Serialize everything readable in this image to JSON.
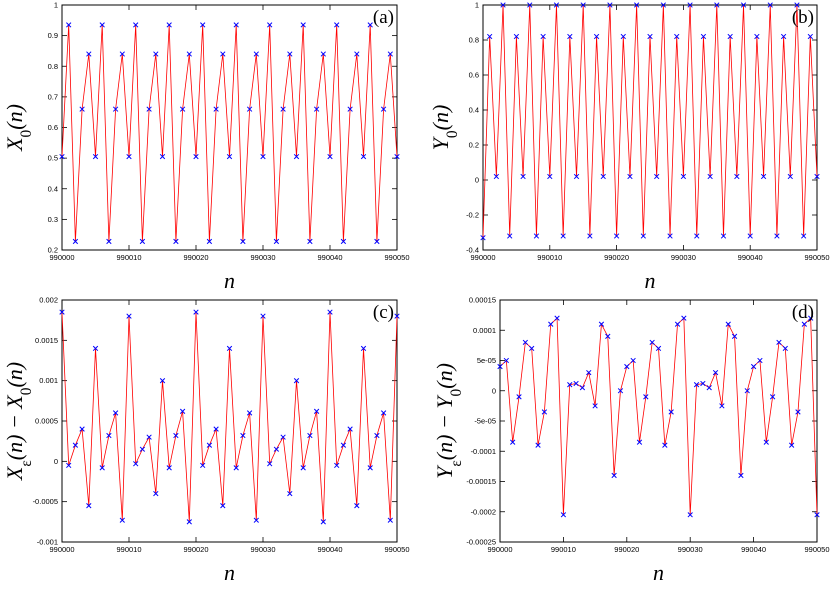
{
  "colors": {
    "line": "#ff0000",
    "marker": "#0000ff",
    "axes": "#000000"
  },
  "chart_data": [
    {
      "id": "a",
      "type": "line",
      "panel_label": "(a)",
      "xlabel": "n",
      "ylabel": "X_0(n)",
      "xlim": [
        990000,
        990050
      ],
      "ylim": [
        0.2,
        1.0
      ],
      "xticks": [
        990000,
        990010,
        990020,
        990030,
        990040,
        990050
      ],
      "xtick_labels": [
        "990000",
        "990010",
        "990020",
        "990030",
        "990040",
        "990050"
      ],
      "yticks": [
        0.2,
        0.3,
        0.4,
        0.5,
        0.6,
        0.7,
        0.8,
        0.9,
        1
      ],
      "ytick_labels": [
        "0.2",
        "0.3",
        "0.4",
        "0.5",
        "0.6",
        "0.7",
        "0.8",
        "0.9",
        "1"
      ],
      "grid": false,
      "markers": "x",
      "x": [
        990000,
        990001,
        990002,
        990003,
        990004,
        990005,
        990006,
        990007,
        990008,
        990009,
        990010,
        990011,
        990012,
        990013,
        990014,
        990015,
        990016,
        990017,
        990018,
        990019,
        990020,
        990021,
        990022,
        990023,
        990024,
        990025,
        990026,
        990027,
        990028,
        990029,
        990030,
        990031,
        990032,
        990033,
        990034,
        990035,
        990036,
        990037,
        990038,
        990039,
        990040,
        990041,
        990042,
        990043,
        990044,
        990045,
        990046,
        990047,
        990048,
        990049,
        990050
      ],
      "y": [
        0.505,
        0.935,
        0.228,
        0.66,
        0.84,
        0.505,
        0.935,
        0.228,
        0.66,
        0.84,
        0.505,
        0.935,
        0.228,
        0.66,
        0.84,
        0.505,
        0.935,
        0.228,
        0.66,
        0.84,
        0.505,
        0.935,
        0.228,
        0.66,
        0.84,
        0.505,
        0.935,
        0.228,
        0.66,
        0.84,
        0.505,
        0.935,
        0.228,
        0.66,
        0.84,
        0.505,
        0.935,
        0.228,
        0.66,
        0.84,
        0.505,
        0.935,
        0.228,
        0.66,
        0.84,
        0.505,
        0.935,
        0.228,
        0.66,
        0.84,
        0.505
      ]
    },
    {
      "id": "b",
      "type": "line",
      "panel_label": "(b)",
      "xlabel": "n",
      "ylabel": "Y_0(n)",
      "xlim": [
        990000,
        990050
      ],
      "ylim": [
        -0.4,
        1.0
      ],
      "xticks": [
        990000,
        990010,
        990020,
        990030,
        990040,
        990050
      ],
      "xtick_labels": [
        "990000",
        "990010",
        "990020",
        "990030",
        "990040",
        "990050"
      ],
      "yticks": [
        -0.4,
        -0.2,
        0,
        0.2,
        0.4,
        0.6,
        0.8,
        1
      ],
      "ytick_labels": [
        "-0.4",
        "-0.2",
        "0",
        "0.2",
        "0.4",
        "0.6",
        "0.8",
        "1"
      ],
      "grid": false,
      "markers": "x",
      "x": [
        990000,
        990001,
        990002,
        990003,
        990004,
        990005,
        990006,
        990007,
        990008,
        990009,
        990010,
        990011,
        990012,
        990013,
        990014,
        990015,
        990016,
        990017,
        990018,
        990019,
        990020,
        990021,
        990022,
        990023,
        990024,
        990025,
        990026,
        990027,
        990028,
        990029,
        990030,
        990031,
        990032,
        990033,
        990034,
        990035,
        990036,
        990037,
        990038,
        990039,
        990040,
        990041,
        990042,
        990043,
        990044,
        990045,
        990046,
        990047,
        990048,
        990049,
        990050
      ],
      "y": [
        -0.33,
        0.82,
        0.02,
        1.0,
        -0.32,
        0.82,
        0.02,
        1.0,
        -0.32,
        0.82,
        0.02,
        1.0,
        -0.32,
        0.82,
        0.02,
        1.0,
        -0.32,
        0.82,
        0.02,
        1.0,
        -0.32,
        0.82,
        0.02,
        1.0,
        -0.32,
        0.82,
        0.02,
        1.0,
        -0.32,
        0.82,
        0.02,
        1.0,
        -0.32,
        0.82,
        0.02,
        1.0,
        -0.32,
        0.82,
        0.02,
        1.0,
        -0.32,
        0.82,
        0.02,
        1.0,
        -0.32,
        0.82,
        0.02,
        1.0,
        -0.32,
        0.82,
        0.02
      ]
    },
    {
      "id": "c",
      "type": "line",
      "panel_label": "(c)",
      "xlabel": "n",
      "ylabel": "X_ε(n) − X_0(n)",
      "xlim": [
        990000,
        990050
      ],
      "ylim": [
        -0.001,
        0.002
      ],
      "xticks": [
        990000,
        990010,
        990020,
        990030,
        990040,
        990050
      ],
      "xtick_labels": [
        "990000",
        "990010",
        "990020",
        "990030",
        "990040",
        "990050"
      ],
      "yticks": [
        -0.001,
        -0.0005,
        0,
        0.0005,
        0.001,
        0.0015,
        0.002
      ],
      "ytick_labels": [
        "-0.001",
        "-0.0005",
        "0",
        "0.0005",
        "0.001",
        "0.0015",
        "0.002"
      ],
      "grid": false,
      "markers": "x",
      "x": [
        990000,
        990001,
        990002,
        990003,
        990004,
        990005,
        990006,
        990007,
        990008,
        990009,
        990010,
        990011,
        990012,
        990013,
        990014,
        990015,
        990016,
        990017,
        990018,
        990019,
        990020,
        990021,
        990022,
        990023,
        990024,
        990025,
        990026,
        990027,
        990028,
        990029,
        990030,
        990031,
        990032,
        990033,
        990034,
        990035,
        990036,
        990037,
        990038,
        990039,
        990040,
        990041,
        990042,
        990043,
        990044,
        990045,
        990046,
        990047,
        990048,
        990049,
        990050
      ],
      "y": [
        0.00185,
        -5e-05,
        0.0002,
        0.0004,
        -0.00055,
        0.0014,
        -8e-05,
        0.00032,
        0.0006,
        -0.00073,
        0.0018,
        -3e-05,
        0.00015,
        0.0003,
        -0.0004,
        0.001,
        -8e-05,
        0.00032,
        0.00062,
        -0.00075,
        0.00185,
        -5e-05,
        0.0002,
        0.0004,
        -0.00055,
        0.0014,
        -8e-05,
        0.00032,
        0.0006,
        -0.00073,
        0.0018,
        -3e-05,
        0.00015,
        0.0003,
        -0.0004,
        0.001,
        -8e-05,
        0.00032,
        0.00062,
        -0.00075,
        0.00185,
        -5e-05,
        0.0002,
        0.0004,
        -0.00055,
        0.0014,
        -8e-05,
        0.00032,
        0.0006,
        -0.00073,
        0.0018
      ]
    },
    {
      "id": "d",
      "type": "line",
      "panel_label": "(d)",
      "xlabel": "n",
      "ylabel": "Y_ε(n) − Y_0(n)",
      "xlim": [
        990000,
        990050
      ],
      "ylim": [
        -0.00025,
        0.00015
      ],
      "xticks": [
        990000,
        990010,
        990020,
        990030,
        990040,
        990050
      ],
      "xtick_labels": [
        "990000",
        "990010",
        "990020",
        "990030",
        "990040",
        "990050"
      ],
      "yticks": [
        -0.00025,
        -0.0002,
        -0.00015,
        -0.0001,
        -5e-05,
        0,
        5e-05,
        0.0001,
        0.00015
      ],
      "ytick_labels": [
        "-0.00025",
        "-0.0002",
        "-0.00015",
        "-0.0001",
        "-5e-05",
        "0",
        "5e-05",
        "0.0001",
        "0.00015"
      ],
      "grid": false,
      "markers": "x",
      "x": [
        990000,
        990001,
        990002,
        990003,
        990004,
        990005,
        990006,
        990007,
        990008,
        990009,
        990010,
        990011,
        990012,
        990013,
        990014,
        990015,
        990016,
        990017,
        990018,
        990019,
        990020,
        990021,
        990022,
        990023,
        990024,
        990025,
        990026,
        990027,
        990028,
        990029,
        990030,
        990031,
        990032,
        990033,
        990034,
        990035,
        990036,
        990037,
        990038,
        990039,
        990040,
        990041,
        990042,
        990043,
        990044,
        990045,
        990046,
        990047,
        990048,
        990049,
        990050
      ],
      "y": [
        4e-05,
        5e-05,
        -8.5e-05,
        -1e-05,
        8e-05,
        7e-05,
        -9e-05,
        -3.5e-05,
        0.00011,
        0.00012,
        -0.000205,
        1e-05,
        1.2e-05,
        5e-06,
        3e-05,
        -2.5e-05,
        0.00011,
        9e-05,
        -0.00014,
        0.0,
        4e-05,
        5e-05,
        -8.5e-05,
        -1e-05,
        8e-05,
        7e-05,
        -9e-05,
        -3.5e-05,
        0.00011,
        0.00012,
        -0.000205,
        1e-05,
        1.2e-05,
        5e-06,
        3e-05,
        -2.5e-05,
        0.00011,
        9e-05,
        -0.00014,
        0.0,
        4e-05,
        5e-05,
        -8.5e-05,
        -1e-05,
        8e-05,
        7e-05,
        -9e-05,
        -3.5e-05,
        0.00011,
        0.00012,
        -0.000205
      ]
    }
  ]
}
